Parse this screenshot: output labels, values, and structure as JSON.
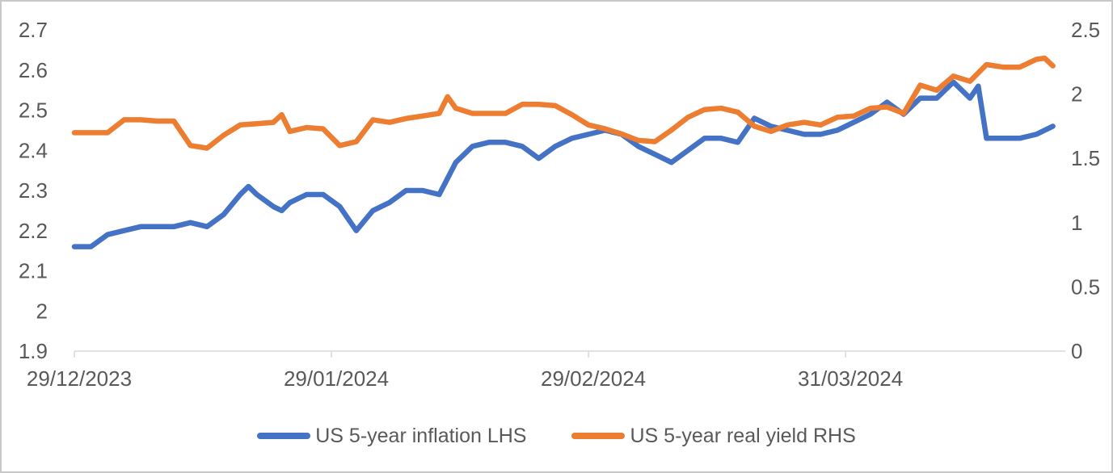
{
  "chart_data": {
    "type": "line",
    "title": "",
    "legend_position": "bottom-center",
    "grid": false,
    "axis_color": "#D9D9D9",
    "text_color": "#595959",
    "x_start_date": "29/12/2023",
    "x_span_days": 119.5,
    "x_tick_labels": [
      "29/12/2023",
      "29/01/2024",
      "29/02/2024",
      "31/03/2024"
    ],
    "left_axis": {
      "min": 1.9,
      "max": 2.7,
      "ticks": [
        "2.7",
        "2.6",
        "2.5",
        "2.4",
        "2.3",
        "2.2",
        "2.1",
        "2",
        "1.9"
      ]
    },
    "right_axis": {
      "min": 0,
      "max": 2.5,
      "ticks": [
        "2.5",
        "2",
        "1.5",
        "1",
        "0.5",
        "0"
      ]
    },
    "series": [
      {
        "id": "us-5-year-inflation-lhs",
        "name": "US 5-year inflation LHS",
        "axis": "left",
        "color": "#4472C4",
        "points": [
          [
            "29/12/2023",
            2.16
          ],
          [
            "31/12/2023",
            2.16
          ],
          [
            "02/01/2024",
            2.19
          ],
          [
            "04/01/2024",
            2.2
          ],
          [
            "06/01/2024",
            2.21
          ],
          [
            "08/01/2024",
            2.21
          ],
          [
            "10/01/2024",
            2.21
          ],
          [
            "12/01/2024",
            2.22
          ],
          [
            "14/01/2024",
            2.21
          ],
          [
            "16/01/2024",
            2.24
          ],
          [
            "18/01/2024",
            2.29
          ],
          [
            "19/01/2024",
            2.31
          ],
          [
            "20/01/2024",
            2.29
          ],
          [
            "22/01/2024",
            2.26
          ],
          [
            "23/01/2024",
            2.25
          ],
          [
            "24/01/2024",
            2.27
          ],
          [
            "26/01/2024",
            2.29
          ],
          [
            "28/01/2024",
            2.29
          ],
          [
            "30/01/2024",
            2.26
          ],
          [
            "01/02/2024",
            2.2
          ],
          [
            "03/02/2024",
            2.25
          ],
          [
            "05/02/2024",
            2.27
          ],
          [
            "07/02/2024",
            2.3
          ],
          [
            "09/02/2024",
            2.3
          ],
          [
            "11/02/2024",
            2.29
          ],
          [
            "13/02/2024",
            2.37
          ],
          [
            "15/02/2024",
            2.41
          ],
          [
            "17/02/2024",
            2.42
          ],
          [
            "19/02/2024",
            2.42
          ],
          [
            "21/02/2024",
            2.41
          ],
          [
            "23/02/2024",
            2.38
          ],
          [
            "25/02/2024",
            2.41
          ],
          [
            "27/02/2024",
            2.43
          ],
          [
            "29/02/2024",
            2.44
          ],
          [
            "02/03/2024",
            2.45
          ],
          [
            "04/03/2024",
            2.44
          ],
          [
            "06/03/2024",
            2.41
          ],
          [
            "08/03/2024",
            2.39
          ],
          [
            "10/03/2024",
            2.37
          ],
          [
            "12/03/2024",
            2.4
          ],
          [
            "14/03/2024",
            2.43
          ],
          [
            "16/03/2024",
            2.43
          ],
          [
            "18/03/2024",
            2.42
          ],
          [
            "20/03/2024",
            2.48
          ],
          [
            "22/03/2024",
            2.46
          ],
          [
            "24/03/2024",
            2.45
          ],
          [
            "26/03/2024",
            2.44
          ],
          [
            "28/03/2024",
            2.44
          ],
          [
            "30/03/2024",
            2.45
          ],
          [
            "01/04/2024",
            2.47
          ],
          [
            "03/04/2024",
            2.49
          ],
          [
            "05/04/2024",
            2.52
          ],
          [
            "07/04/2024",
            2.49
          ],
          [
            "09/04/2024",
            2.53
          ],
          [
            "11/04/2024",
            2.53
          ],
          [
            "13/04/2024",
            2.57
          ],
          [
            "14/04/2024",
            2.55
          ],
          [
            "15/04/2024",
            2.53
          ],
          [
            "16/04/2024",
            2.56
          ],
          [
            "17/04/2024",
            2.43
          ],
          [
            "19/04/2024",
            2.43
          ],
          [
            "21/04/2024",
            2.43
          ],
          [
            "23/04/2024",
            2.44
          ],
          [
            "25/04/2024",
            2.46
          ]
        ]
      },
      {
        "id": "us-5-year-real-yield-rhs",
        "name": "US 5-year real yield RHS",
        "axis": "right",
        "color": "#ED7D31",
        "points": [
          [
            "29/12/2023",
            1.7
          ],
          [
            "31/12/2023",
            1.7
          ],
          [
            "02/01/2024",
            1.7
          ],
          [
            "04/01/2024",
            1.8
          ],
          [
            "06/01/2024",
            1.8
          ],
          [
            "08/01/2024",
            1.79
          ],
          [
            "10/01/2024",
            1.79
          ],
          [
            "12/01/2024",
            1.6
          ],
          [
            "14/01/2024",
            1.58
          ],
          [
            "16/01/2024",
            1.68
          ],
          [
            "18/01/2024",
            1.76
          ],
          [
            "20/01/2024",
            1.77
          ],
          [
            "22/01/2024",
            1.78
          ],
          [
            "23/01/2024",
            1.84
          ],
          [
            "24/01/2024",
            1.71
          ],
          [
            "26/01/2024",
            1.74
          ],
          [
            "28/01/2024",
            1.73
          ],
          [
            "30/01/2024",
            1.6
          ],
          [
            "01/02/2024",
            1.63
          ],
          [
            "03/02/2024",
            1.8
          ],
          [
            "05/02/2024",
            1.78
          ],
          [
            "07/02/2024",
            1.81
          ],
          [
            "09/02/2024",
            1.83
          ],
          [
            "11/02/2024",
            1.85
          ],
          [
            "12/02/2024",
            1.98
          ],
          [
            "13/02/2024",
            1.89
          ],
          [
            "15/02/2024",
            1.85
          ],
          [
            "17/02/2024",
            1.85
          ],
          [
            "19/02/2024",
            1.85
          ],
          [
            "21/02/2024",
            1.92
          ],
          [
            "23/02/2024",
            1.92
          ],
          [
            "25/02/2024",
            1.91
          ],
          [
            "27/02/2024",
            1.84
          ],
          [
            "29/02/2024",
            1.76
          ],
          [
            "02/03/2024",
            1.73
          ],
          [
            "04/03/2024",
            1.69
          ],
          [
            "06/03/2024",
            1.64
          ],
          [
            "08/03/2024",
            1.63
          ],
          [
            "10/03/2024",
            1.72
          ],
          [
            "12/03/2024",
            1.82
          ],
          [
            "14/03/2024",
            1.88
          ],
          [
            "16/03/2024",
            1.89
          ],
          [
            "18/03/2024",
            1.86
          ],
          [
            "20/03/2024",
            1.75
          ],
          [
            "22/03/2024",
            1.71
          ],
          [
            "24/03/2024",
            1.76
          ],
          [
            "26/03/2024",
            1.78
          ],
          [
            "28/03/2024",
            1.76
          ],
          [
            "30/03/2024",
            1.82
          ],
          [
            "01/04/2024",
            1.83
          ],
          [
            "03/04/2024",
            1.89
          ],
          [
            "05/04/2024",
            1.9
          ],
          [
            "07/04/2024",
            1.85
          ],
          [
            "09/04/2024",
            2.07
          ],
          [
            "11/04/2024",
            2.03
          ],
          [
            "13/04/2024",
            2.14
          ],
          [
            "15/04/2024",
            2.1
          ],
          [
            "17/04/2024",
            2.23
          ],
          [
            "19/04/2024",
            2.21
          ],
          [
            "21/04/2024",
            2.21
          ],
          [
            "23/04/2024",
            2.27
          ],
          [
            "24/04/2024",
            2.28
          ],
          [
            "25/04/2024",
            2.22
          ]
        ]
      }
    ]
  },
  "legend": {
    "items": [
      {
        "label": "US 5-year inflation LHS"
      },
      {
        "label": "US 5-year real yield RHS"
      }
    ]
  }
}
